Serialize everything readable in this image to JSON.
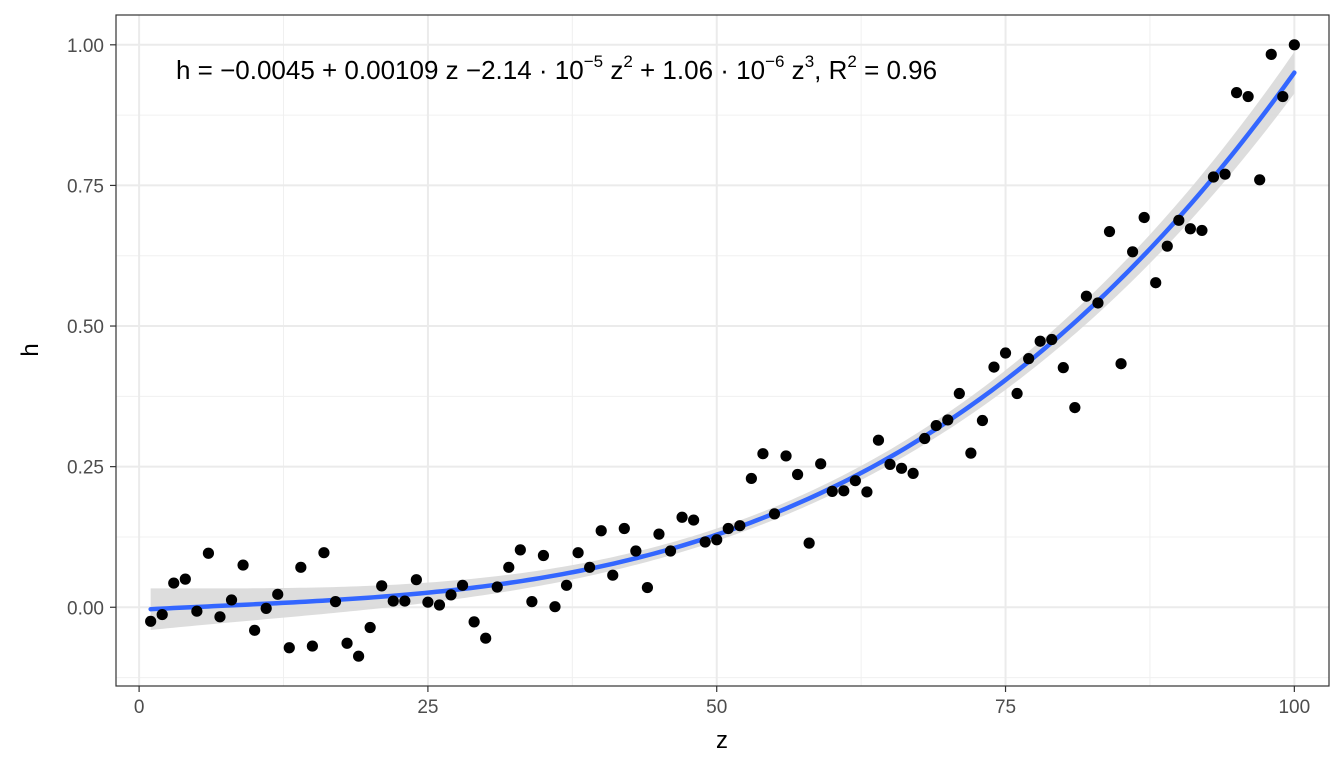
{
  "chart_data": {
    "type": "scatter",
    "title": "",
    "xlabel": "z",
    "ylabel": "h",
    "xlim": [
      -2,
      103
    ],
    "ylim": [
      -0.14,
      1.053
    ],
    "x_ticks": [
      0,
      25,
      50,
      75,
      100
    ],
    "x_tick_labels": [
      "0",
      "25",
      "50",
      "75",
      "100"
    ],
    "y_ticks": [
      0,
      0.25,
      0.5,
      0.75,
      1
    ],
    "y_tick_labels": [
      "0.00",
      "0.25",
      "0.50",
      "0.75",
      "1.00"
    ],
    "grid": true,
    "legend": "none",
    "annotation": {
      "parts": [
        {
          "t": "h = "
        },
        {
          "t": "−"
        },
        {
          "t": "0.0045 + 0.00109 z "
        },
        {
          "t": "−"
        },
        {
          "t": "2.14 · 10"
        },
        {
          "t": "−5",
          "sup": true
        },
        {
          "t": " z"
        },
        {
          "t": "2",
          "sup": true
        },
        {
          "t": " + 1.06 · 10"
        },
        {
          "t": "−6",
          "sup": true
        },
        {
          "t": " z"
        },
        {
          "t": "3",
          "sup": true
        },
        {
          "t": ", R"
        },
        {
          "t": "2",
          "sup": true
        },
        {
          "t": " = 0.96"
        }
      ]
    },
    "points": {
      "color": "#000000",
      "x": [
        1,
        2,
        3,
        4,
        5,
        6,
        7,
        8,
        9,
        10,
        11,
        12,
        13,
        14,
        15,
        16,
        17,
        18,
        19,
        20,
        21,
        22,
        23,
        24,
        25,
        26,
        27,
        28,
        29,
        30,
        31,
        32,
        33,
        34,
        35,
        36,
        37,
        38,
        39,
        40,
        41,
        42,
        43,
        44,
        45,
        46,
        47,
        48,
        49,
        50,
        51,
        52,
        53,
        54,
        55,
        56,
        57,
        58,
        59,
        60,
        61,
        62,
        63,
        64,
        65,
        66,
        67,
        68,
        69,
        70,
        71,
        72,
        73,
        74,
        75,
        76,
        77,
        78,
        79,
        80,
        81,
        82,
        83,
        84,
        85,
        86,
        87,
        88,
        89,
        90,
        91,
        92,
        93,
        94,
        95,
        96,
        97,
        98,
        99,
        100
      ],
      "y": [
        -0.025,
        -0.013,
        0.043,
        0.05,
        -0.007,
        0.096,
        -0.017,
        0.013,
        0.075,
        -0.041,
        -0.002,
        0.023,
        -0.072,
        0.071,
        -0.069,
        0.097,
        0.01,
        -0.064,
        -0.087,
        -0.036,
        0.038,
        0.011,
        0.011,
        0.049,
        0.009,
        0.004,
        0.022,
        0.039,
        -0.026,
        -0.055,
        0.036,
        0.071,
        0.102,
        0.01,
        0.092,
        0.001,
        0.039,
        0.097,
        0.071,
        0.136,
        0.057,
        0.14,
        0.1,
        0.035,
        0.13,
        0.1,
        0.16,
        0.155,
        0.116,
        0.12,
        0.14,
        0.145,
        0.229,
        0.273,
        0.166,
        0.269,
        0.236,
        0.114,
        0.255,
        0.206,
        0.207,
        0.225,
        0.205,
        0.297,
        0.254,
        0.247,
        0.238,
        0.3,
        0.323,
        0.333,
        0.38,
        0.274,
        0.332,
        0.427,
        0.452,
        0.38,
        0.442,
        0.473,
        0.476,
        0.426,
        0.355,
        0.553,
        0.541,
        0.668,
        0.433,
        0.632,
        0.693,
        0.577,
        0.642,
        0.688,
        0.673,
        0.67,
        0.765,
        0.77,
        0.915,
        0.908,
        0.76,
        0.983,
        0.908,
        1.0
      ]
    },
    "fit": {
      "type": "polynomial",
      "degree": 3,
      "color": "#3366ff",
      "band_color": "#d9d9d9",
      "coefficients": [
        -0.0045,
        0.00109,
        -2.14e-05,
        1.06e-06
      ],
      "x_range": [
        1,
        100
      ],
      "ci_halfwidth_ends": 0.037,
      "ci_halfwidth_mid": 0.011
    }
  }
}
